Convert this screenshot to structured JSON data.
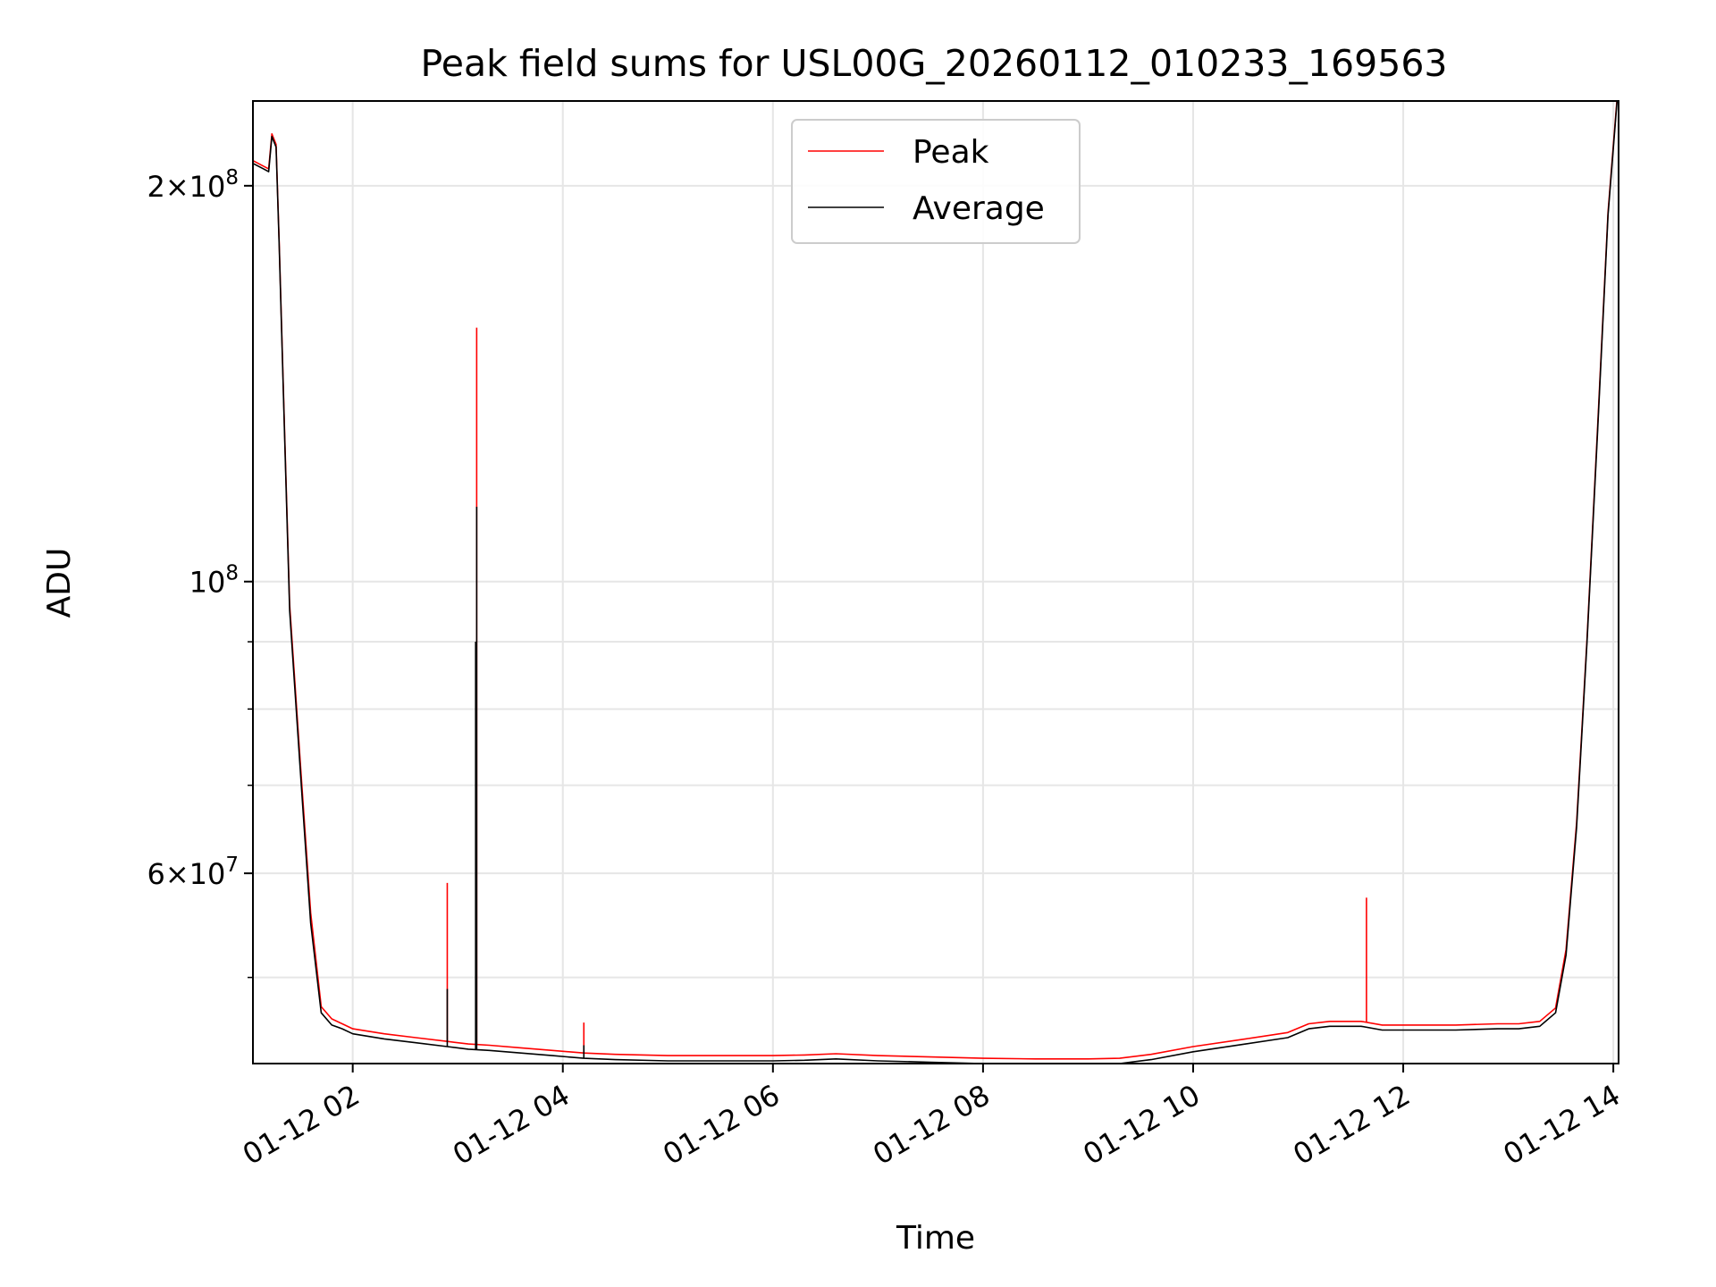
{
  "chart_data": {
    "type": "line",
    "title": "Peak field sums for USL00G_20260112_010233_169563",
    "xlabel": "Time",
    "ylabel": "ADU",
    "yscale": "log",
    "xlim_hours": [
      1.05,
      14.05
    ],
    "ylim": [
      43000000,
      232000000
    ],
    "grid": true,
    "legend_position": "top-center",
    "x_ticks": [
      {
        "value": 2,
        "label": "01-12 02"
      },
      {
        "value": 4,
        "label": "01-12 04"
      },
      {
        "value": 6,
        "label": "01-12 06"
      },
      {
        "value": 8,
        "label": "01-12 08"
      },
      {
        "value": 10,
        "label": "01-12 10"
      },
      {
        "value": 12,
        "label": "01-12 12"
      },
      {
        "value": 14,
        "label": "01-12 14"
      }
    ],
    "y_major_ticks": [
      {
        "value": 200000000,
        "mantissa": "2",
        "exponent": "8"
      },
      {
        "value": 100000000,
        "mantissa": "",
        "exponent": "8"
      },
      {
        "value": 60000000,
        "mantissa": "6",
        "exponent": "7"
      }
    ],
    "y_minor_ticks": [
      50000000,
      70000000,
      80000000,
      90000000
    ],
    "series": [
      {
        "name": "Average",
        "color": "#000000",
        "x_hours": [
          1.05,
          1.15,
          1.2,
          1.23,
          1.27,
          1.3,
          1.35,
          1.4,
          1.5,
          1.6,
          1.7,
          1.8,
          1.9,
          2.0,
          2.3,
          2.6,
          2.9,
          3.1,
          3.3,
          3.6,
          3.9,
          4.2,
          4.5,
          5.0,
          5.5,
          6.0,
          6.3,
          6.6,
          7.0,
          7.5,
          8.0,
          8.5,
          9.0,
          9.3,
          9.6,
          10.0,
          10.5,
          10.9,
          11.1,
          11.3,
          11.6,
          11.8,
          12.0,
          12.5,
          12.9,
          13.1,
          13.3,
          13.45,
          13.55,
          13.65,
          13.75,
          13.85,
          13.95,
          14.05
        ],
        "values": [
          208000000,
          206000000,
          205000000,
          218000000,
          214000000,
          180000000,
          130000000,
          95000000,
          72000000,
          55000000,
          47000000,
          46000000,
          45700000,
          45300000,
          44900000,
          44600000,
          44300000,
          44100000,
          44000000,
          43800000,
          43600000,
          43400000,
          43300000,
          43200000,
          43200000,
          43200000,
          43250000,
          43350000,
          43200000,
          43100000,
          43000000,
          42950000,
          42950000,
          43000000,
          43300000,
          43900000,
          44500000,
          45000000,
          45700000,
          45900000,
          45900000,
          45600000,
          45600000,
          45600000,
          45700000,
          45700000,
          45900000,
          47000000,
          52000000,
          65000000,
          90000000,
          130000000,
          190000000,
          240000000
        ],
        "spikes": [
          {
            "x_hours": 2.9,
            "value": 49000000
          },
          {
            "x_hours": 3.18,
            "value": 114000000
          },
          {
            "x_hours": 3.17,
            "value": 90000000
          },
          {
            "x_hours": 4.2,
            "value": 44400000
          }
        ]
      },
      {
        "name": "Peak",
        "color": "#ff0000",
        "x_hours": [
          1.05,
          1.15,
          1.2,
          1.23,
          1.27,
          1.3,
          1.35,
          1.4,
          1.5,
          1.6,
          1.7,
          1.8,
          1.9,
          2.0,
          2.3,
          2.6,
          2.9,
          3.1,
          3.3,
          3.6,
          3.9,
          4.2,
          4.5,
          5.0,
          5.5,
          6.0,
          6.3,
          6.6,
          7.0,
          7.5,
          8.0,
          8.5,
          9.0,
          9.3,
          9.6,
          10.0,
          10.5,
          10.9,
          11.1,
          11.3,
          11.6,
          11.8,
          12.0,
          12.5,
          12.9,
          13.1,
          13.3,
          13.45,
          13.55,
          13.65,
          13.75,
          13.85,
          13.95,
          14.05
        ],
        "values": [
          209000000,
          207000000,
          206000000,
          219000000,
          215000000,
          181000000,
          131000000,
          96000000,
          73000000,
          56000000,
          47500000,
          46500000,
          46100000,
          45700000,
          45300000,
          45000000,
          44700000,
          44500000,
          44400000,
          44200000,
          44000000,
          43800000,
          43700000,
          43600000,
          43600000,
          43600000,
          43650000,
          43750000,
          43600000,
          43500000,
          43400000,
          43350000,
          43350000,
          43400000,
          43700000,
          44300000,
          44900000,
          45400000,
          46100000,
          46300000,
          46300000,
          46000000,
          46000000,
          46000000,
          46100000,
          46100000,
          46300000,
          47400000,
          52500000,
          65500000,
          90500000,
          131000000,
          191000000,
          241000000
        ],
        "spikes": [
          {
            "x_hours": 2.9,
            "value": 59000000
          },
          {
            "x_hours": 3.18,
            "value": 156000000
          },
          {
            "x_hours": 4.2,
            "value": 46200000
          },
          {
            "x_hours": 11.65,
            "value": 57500000
          }
        ]
      }
    ]
  }
}
